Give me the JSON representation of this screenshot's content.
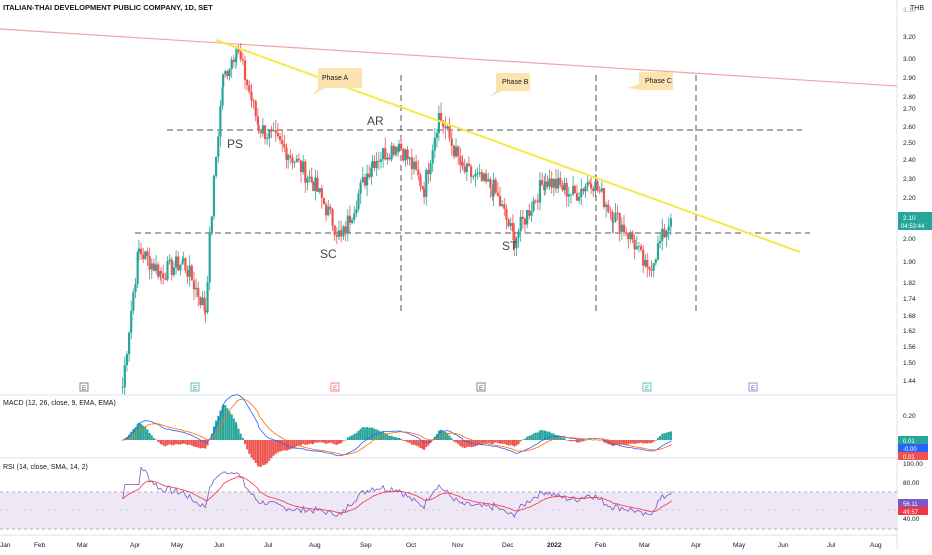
{
  "header": {
    "title": "ITALIAN-THAI DEVELOPMENT PUBLIC COMPANY, 1D, SET",
    "currency": "THB"
  },
  "colors": {
    "up": "#26a69a",
    "down": "#ef5350",
    "trendline": "#f7e94b",
    "resistance": "#f4a3a3",
    "macd_line": "#2962ff",
    "signal_line": "#ff6d00",
    "rsi_line": "#7e57c2",
    "rsi_ma": "#f23645",
    "rsi_band": "#ede7f6",
    "phase_box": "#fde3b0",
    "last_price": "#26a69a"
  },
  "price_axis": {
    "ticks": [
      "3.20",
      "3.00",
      "2.90",
      "2.80",
      "2.70",
      "2.60",
      "2.50",
      "2.40",
      "2.30",
      "2.20",
      "2.10",
      "2.00",
      "1.90",
      "1.82",
      "1.74",
      "1.68",
      "1.62",
      "1.56",
      "1.50",
      "1.44"
    ],
    "top_label": "3.10",
    "last_price": "2.10",
    "countdown": "04:53:44"
  },
  "time_axis": {
    "labels": [
      "Jan",
      "Feb",
      "Mar",
      "Apr",
      "May",
      "Jun",
      "Jul",
      "Aug",
      "Sep",
      "Oct",
      "Nov",
      "Dec",
      "2022",
      "Feb",
      "Mar",
      "Apr",
      "May",
      "Jun",
      "Jul",
      "Aug"
    ]
  },
  "annotations": {
    "phases": [
      "Phase A",
      "Phase B",
      "Phase C"
    ],
    "labels": [
      "PS",
      "AR",
      "SC",
      "ST"
    ],
    "event_markers": [
      "E",
      "E",
      "E",
      "E",
      "E",
      "E"
    ]
  },
  "macd": {
    "title": "MACD (12, 26, close, 9, EMA, EMA)",
    "tick": "0.20",
    "values": [
      "0.01",
      "-0.00",
      "0.01"
    ]
  },
  "rsi": {
    "title": "RSI (14, close, SMA, 14, 2)",
    "ticks": [
      "100.00",
      "80.00",
      "40.00"
    ],
    "values": [
      "56.11",
      "49.57"
    ]
  },
  "chart_data": {
    "type": "candlestick",
    "title": "ITALIAN-THAI DEVELOPMENT PUBLIC COMPANY, 1D, SET",
    "ylabel": "THB",
    "x_range": [
      "2021-01",
      "2022-08"
    ],
    "ylim": [
      1.4,
      3.1
    ],
    "y_scale": "log",
    "series": [
      {
        "name": "price_path_approx",
        "x": [
          "2021-03-25",
          "2021-04-05",
          "2021-04-20",
          "2021-05-05",
          "2021-05-20",
          "2021-06-01",
          "2021-06-10",
          "2021-06-25",
          "2021-07-15",
          "2021-08-01",
          "2021-08-20",
          "2021-09-10",
          "2021-09-28",
          "2021-10-15",
          "2021-10-25",
          "2021-11-10",
          "2021-12-01",
          "2021-12-15",
          "2022-01-05",
          "2022-01-25",
          "2022-02-05",
          "2022-02-20",
          "2022-03-05",
          "2022-03-15",
          "2022-03-31"
        ],
        "close": [
          1.42,
          1.95,
          1.85,
          1.9,
          1.7,
          2.9,
          3.12,
          2.6,
          2.45,
          2.28,
          2.0,
          2.4,
          2.5,
          2.25,
          2.67,
          2.35,
          2.25,
          2.0,
          2.3,
          2.22,
          2.3,
          2.12,
          2.0,
          1.85,
          2.1
        ]
      }
    ],
    "trendlines": [
      {
        "name": "descending_trendline",
        "from": [
          "2021-06-08",
          3.15
        ],
        "to": [
          "2022-05-31",
          1.95
        ]
      },
      {
        "name": "resistance_line",
        "from": [
          "2021-01-01",
          3.12
        ],
        "to": [
          "2022-08-31",
          2.9
        ]
      }
    ],
    "levels": [
      2.58,
      2.02
    ],
    "macd": {
      "macd": 0.01,
      "signal": -0.0,
      "histogram": 0.01
    },
    "rsi": {
      "rsi": 56.11,
      "ma": 49.57
    }
  }
}
